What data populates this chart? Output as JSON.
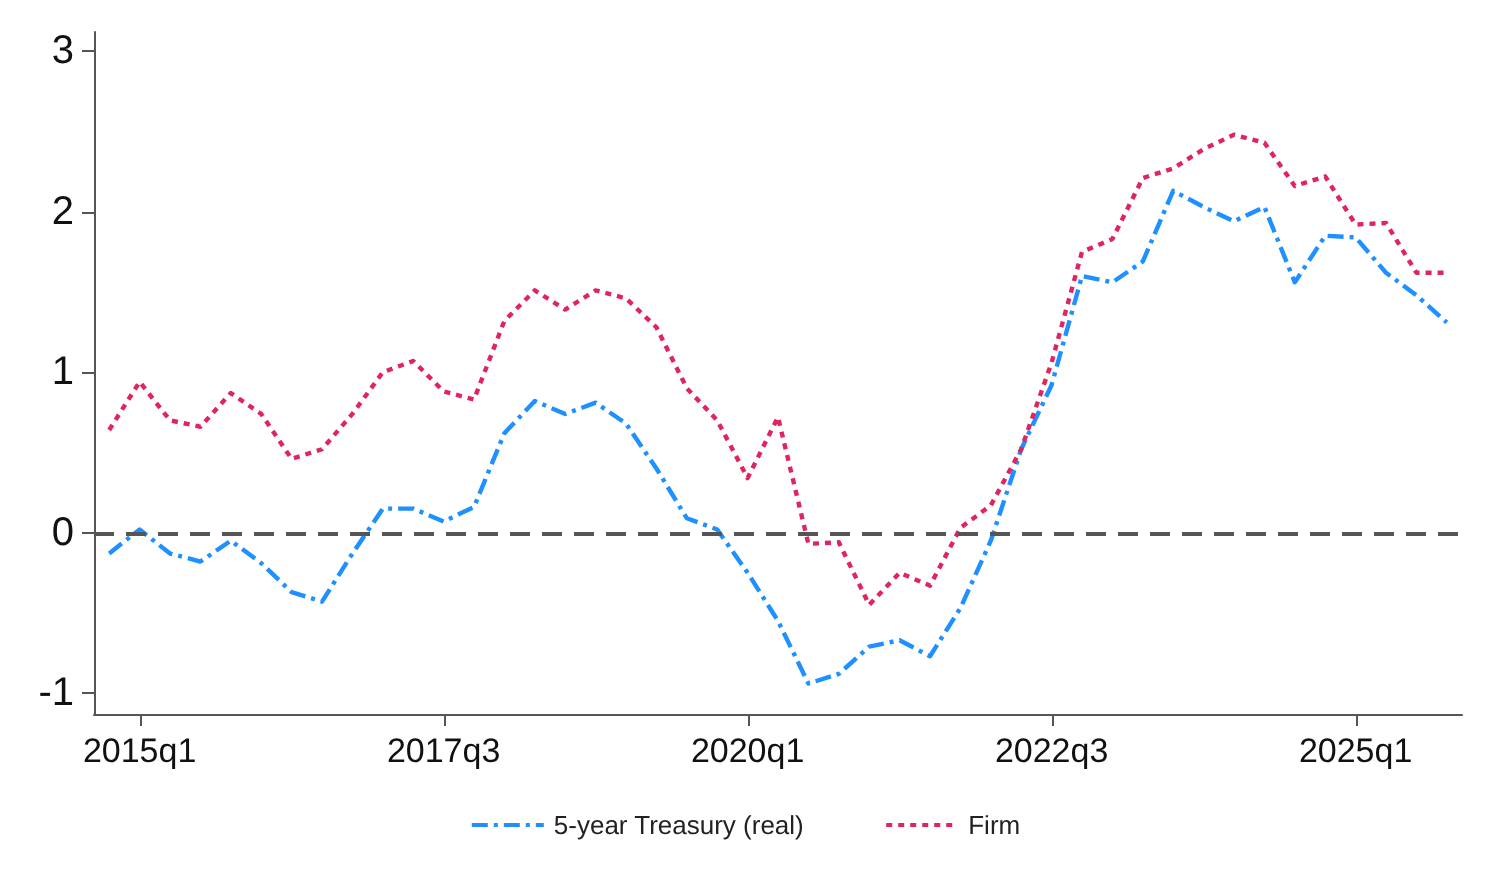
{
  "chart_data": {
    "type": "line",
    "categories": [
      null,
      "2015q1",
      null,
      null,
      null,
      null,
      null,
      null,
      null,
      null,
      null,
      "2017q3",
      null,
      null,
      null,
      null,
      null,
      null,
      null,
      null,
      null,
      "2020q1",
      null,
      null,
      null,
      null,
      null,
      null,
      null,
      null,
      null,
      "2022q3",
      null,
      null,
      null,
      null,
      null,
      null,
      null,
      null,
      null,
      "2025q1",
      null,
      null,
      null
    ],
    "series": [
      {
        "name": "5-year Treasury (real)",
        "color": "#1e90ff",
        "line_style": "dashed",
        "values": [
          -0.13,
          0.02,
          -0.13,
          -0.18,
          -0.05,
          -0.19,
          -0.37,
          -0.43,
          -0.13,
          0.15,
          0.15,
          0.07,
          0.16,
          0.62,
          0.82,
          0.74,
          0.81,
          0.68,
          0.4,
          0.09,
          0.02,
          -0.25,
          -0.55,
          -0.94,
          -0.88,
          -0.71,
          -0.67,
          -0.77,
          -0.47,
          -0.05,
          0.52,
          0.92,
          1.6,
          1.56,
          1.69,
          2.13,
          2.03,
          1.94,
          2.03,
          1.56,
          1.85,
          1.84,
          1.62,
          1.48,
          1.31
        ]
      },
      {
        "name": "Firm",
        "color": "#e0245e",
        "line_style": "dotted",
        "values": [
          0.64,
          0.94,
          0.7,
          0.66,
          0.87,
          0.74,
          0.46,
          0.52,
          0.74,
          1.0,
          1.07,
          0.88,
          0.83,
          1.32,
          1.51,
          1.39,
          1.51,
          1.46,
          1.28,
          0.9,
          0.7,
          0.34,
          0.72,
          -0.07,
          -0.06,
          -0.45,
          -0.25,
          -0.33,
          0.03,
          0.17,
          0.52,
          1.06,
          1.75,
          1.83,
          2.21,
          2.27,
          2.39,
          2.48,
          2.43,
          2.16,
          2.22,
          1.92,
          1.93,
          1.62,
          1.62
        ]
      }
    ],
    "ylim": [
      -1.13,
      3.12
    ],
    "yticks": [
      -1,
      0,
      1,
      2,
      3
    ],
    "ref_lines": [
      {
        "axis": "y",
        "value": 0,
        "color": "#555555",
        "line_style": "dashed"
      }
    ],
    "grid": false,
    "legend": "bottom",
    "marker": "none"
  }
}
